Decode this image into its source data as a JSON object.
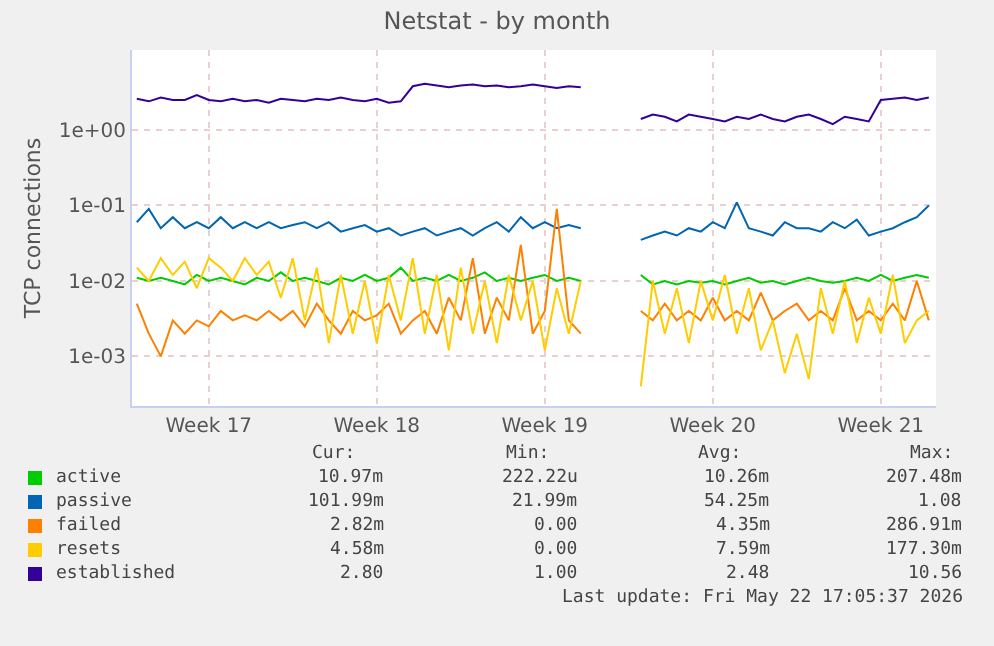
{
  "chart_data": {
    "type": "line",
    "title": "Netstat - by month",
    "ylabel": "TCP connections",
    "categories": [
      null,
      null,
      null,
      null,
      null,
      null,
      "Week 17",
      null,
      null,
      null,
      null,
      null,
      null,
      null,
      null,
      null,
      null,
      null,
      null,
      null,
      "Week 18",
      null,
      null,
      null,
      null,
      null,
      null,
      null,
      null,
      null,
      null,
      null,
      null,
      null,
      "Week 19",
      null,
      null,
      null,
      null,
      null,
      null,
      null,
      null,
      null,
      null,
      null,
      null,
      null,
      "Week 20",
      null,
      null,
      null,
      null,
      null,
      null,
      null,
      null,
      null,
      null,
      null,
      null,
      null,
      "Week 21",
      null,
      null,
      null,
      null
    ],
    "series": [
      {
        "name": "active",
        "color": "#00cc00",
        "values": [
          0.011,
          0.01,
          0.011,
          0.01,
          0.009,
          0.012,
          0.01,
          0.011,
          0.01,
          0.009,
          0.011,
          0.01,
          0.013,
          0.01,
          0.011,
          0.01,
          0.009,
          0.011,
          0.01,
          0.012,
          0.01,
          0.011,
          0.015,
          0.01,
          0.011,
          0.01,
          0.012,
          0.01,
          0.011,
          0.013,
          0.01,
          0.011,
          0.01,
          0.011,
          0.012,
          0.01,
          0.011,
          0.01,
          null,
          null,
          null,
          null,
          0.012,
          0.009,
          0.01,
          0.009,
          0.01,
          0.0095,
          0.01,
          0.009,
          0.01,
          0.011,
          0.0095,
          0.01,
          0.009,
          0.01,
          0.011,
          0.01,
          0.0095,
          0.01,
          0.011,
          0.01,
          0.012,
          0.01,
          0.011,
          0.012,
          0.011
        ]
      },
      {
        "name": "passive",
        "color": "#0066b3",
        "values": [
          0.06,
          0.09,
          0.05,
          0.07,
          0.05,
          0.06,
          0.05,
          0.07,
          0.05,
          0.06,
          0.05,
          0.06,
          0.05,
          0.055,
          0.06,
          0.05,
          0.06,
          0.045,
          0.05,
          0.055,
          0.045,
          0.05,
          0.04,
          0.045,
          0.05,
          0.04,
          0.045,
          0.05,
          0.04,
          0.05,
          0.06,
          0.045,
          0.07,
          0.05,
          0.06,
          0.05,
          0.055,
          0.05,
          null,
          null,
          null,
          null,
          0.035,
          0.04,
          0.045,
          0.04,
          0.05,
          0.045,
          0.06,
          0.05,
          0.11,
          0.05,
          0.045,
          0.04,
          0.06,
          0.05,
          0.05,
          0.045,
          0.06,
          0.05,
          0.065,
          0.04,
          0.045,
          0.05,
          0.06,
          0.07,
          0.1
        ]
      },
      {
        "name": "failed",
        "color": "#ff8000",
        "values": [
          0.005,
          0.002,
          0.001,
          0.003,
          0.002,
          0.003,
          0.0025,
          0.004,
          0.003,
          0.0035,
          0.003,
          0.004,
          0.003,
          0.004,
          0.0025,
          0.005,
          0.003,
          0.002,
          0.004,
          0.003,
          0.0035,
          0.005,
          0.002,
          0.003,
          0.004,
          0.002,
          0.006,
          0.003,
          0.02,
          0.002,
          0.006,
          0.003,
          0.03,
          0.002,
          0.004,
          0.09,
          0.003,
          0.002,
          null,
          null,
          null,
          null,
          0.004,
          0.003,
          0.005,
          0.003,
          0.004,
          0.003,
          0.006,
          0.003,
          0.004,
          0.003,
          0.007,
          0.003,
          0.004,
          0.005,
          0.003,
          0.004,
          0.003,
          0.008,
          0.003,
          0.004,
          0.003,
          0.005,
          0.003,
          0.01,
          0.003
        ]
      },
      {
        "name": "resets",
        "color": "#ffcc00",
        "values": [
          0.015,
          0.01,
          0.02,
          0.012,
          0.018,
          0.008,
          0.02,
          0.015,
          0.01,
          0.02,
          0.012,
          0.018,
          0.006,
          0.02,
          0.003,
          0.015,
          0.0015,
          0.012,
          0.002,
          0.01,
          0.0015,
          0.012,
          0.003,
          0.02,
          0.002,
          0.012,
          0.0012,
          0.015,
          0.002,
          0.01,
          0.0015,
          0.012,
          0.003,
          0.01,
          0.0012,
          0.008,
          0.002,
          0.01,
          null,
          null,
          null,
          null,
          0.0004,
          0.01,
          0.002,
          0.008,
          0.0015,
          0.01,
          0.003,
          0.012,
          0.002,
          0.008,
          0.0012,
          0.003,
          0.0006,
          0.002,
          0.0005,
          0.008,
          0.002,
          0.01,
          0.0015,
          0.006,
          0.002,
          0.012,
          0.0015,
          0.003,
          0.004
        ]
      },
      {
        "name": "established",
        "color": "#330099",
        "values": [
          2.6,
          2.4,
          2.7,
          2.5,
          2.5,
          2.9,
          2.5,
          2.4,
          2.6,
          2.4,
          2.5,
          2.3,
          2.6,
          2.5,
          2.4,
          2.6,
          2.5,
          2.7,
          2.5,
          2.4,
          2.6,
          2.3,
          2.4,
          3.8,
          4.1,
          3.9,
          3.7,
          3.9,
          4.0,
          3.8,
          3.9,
          3.7,
          3.8,
          4.0,
          3.8,
          3.6,
          3.8,
          3.7,
          null,
          null,
          null,
          null,
          1.4,
          1.6,
          1.5,
          1.3,
          1.6,
          1.5,
          1.4,
          1.3,
          1.5,
          1.4,
          1.6,
          1.4,
          1.3,
          1.5,
          1.6,
          1.4,
          1.2,
          1.5,
          1.4,
          1.3,
          2.5,
          2.6,
          2.7,
          2.5,
          2.7
        ]
      }
    ],
    "ylim": [
      0.00022,
      11.5
    ],
    "yticks": [
      {
        "value": 0.001,
        "label": "1e-03"
      },
      {
        "value": 0.01,
        "label": "1e-02"
      },
      {
        "value": 0.1,
        "label": "1e-01"
      },
      {
        "value": 1,
        "label": "1e+00"
      }
    ],
    "log": "y",
    "grid": true,
    "legend": "bottom",
    "marker": "none",
    "line_style": "solid",
    "annotations": [
      "Cur:",
      "Min:",
      "Avg:",
      "Max:",
      "10.97m",
      "222.22u",
      "10.26m",
      "207.48m",
      "101.99m",
      "21.99m",
      "54.25m",
      "1.08",
      "2.82m",
      "0.00",
      "4.35m",
      "286.91m",
      "4.58m",
      "0.00",
      "7.59m",
      "177.30m",
      "2.80",
      "1.00",
      "2.48",
      "10.56",
      "Last update: Fri May 22 17:05:37 2026"
    ]
  }
}
